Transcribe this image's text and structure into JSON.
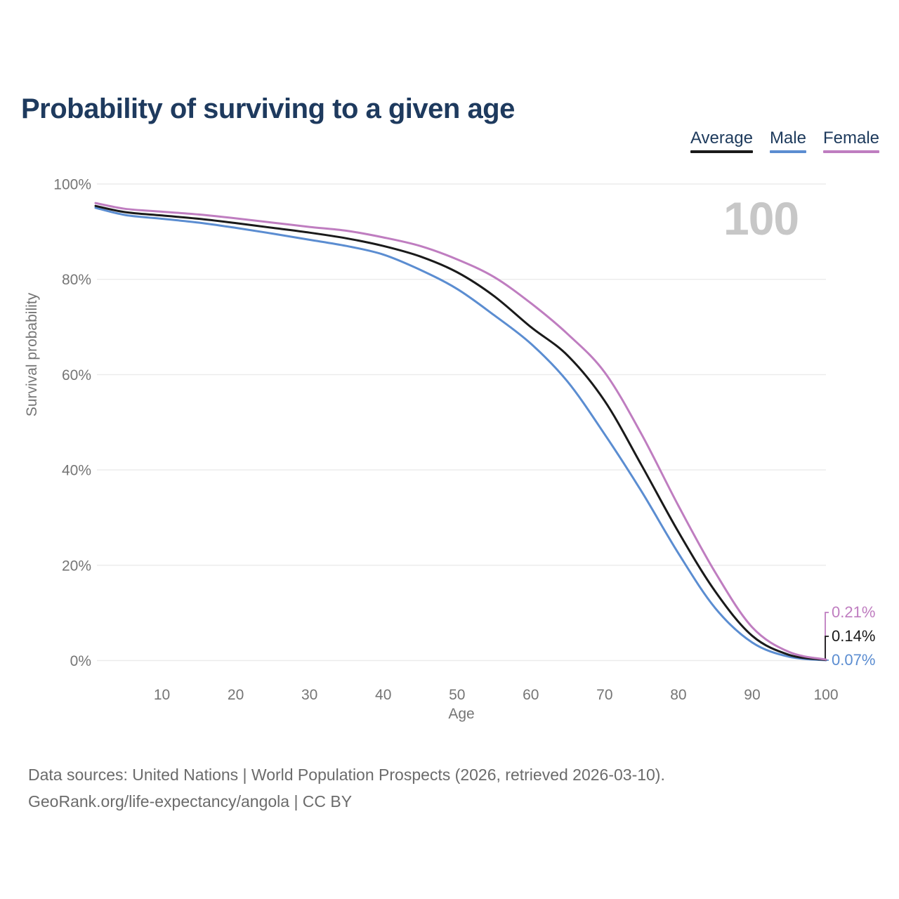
{
  "page": {
    "title": "Probability of surviving to a given age",
    "footer": {
      "line1": "Data sources: United Nations | World Population Prospects (2026, retrieved 2026-03-10).",
      "line2": "GeoRank.org/life-expectancy/angola | CC BY"
    }
  },
  "legend": {
    "items": [
      {
        "label": "Average",
        "color": "#1a1a1a"
      },
      {
        "label": "Male",
        "color": "#5b8dd1"
      },
      {
        "label": "Female",
        "color": "#bf7dc0"
      }
    ]
  },
  "chart_data": {
    "type": "line",
    "title": "Probability of surviving to a given age",
    "xlabel": "Age",
    "ylabel": "Survival probability",
    "xlim": [
      1,
      100
    ],
    "ylim": [
      0,
      100
    ],
    "grid": true,
    "legend_position": "top-right",
    "hover_age_label": "100",
    "x": [
      1,
      5,
      10,
      15,
      20,
      25,
      30,
      35,
      40,
      45,
      50,
      55,
      60,
      65,
      70,
      75,
      80,
      85,
      90,
      95,
      100
    ],
    "series": [
      {
        "name": "Average",
        "color": "#1a1a1a",
        "values": [
          95.4,
          94.1,
          93.4,
          92.7,
          91.8,
          90.8,
          89.8,
          88.6,
          87.0,
          84.8,
          81.5,
          76.5,
          70.0,
          64.0,
          54.5,
          41.0,
          27.0,
          14.5,
          5.2,
          1.2,
          0.14
        ]
      },
      {
        "name": "Male",
        "color": "#5b8dd1",
        "values": [
          95.0,
          93.5,
          92.7,
          91.9,
          90.8,
          89.6,
          88.3,
          87.0,
          85.2,
          82.0,
          78.0,
          72.5,
          66.5,
          58.5,
          47.5,
          35.5,
          22.5,
          11.0,
          3.8,
          0.8,
          0.07
        ]
      },
      {
        "name": "Female",
        "color": "#bf7dc0",
        "values": [
          96.0,
          94.8,
          94.2,
          93.6,
          92.8,
          91.9,
          91.0,
          90.2,
          88.8,
          87.0,
          84.2,
          80.5,
          75.0,
          68.5,
          60.5,
          47.5,
          32.5,
          18.5,
          7.0,
          1.8,
          0.21
        ]
      }
    ],
    "x_ticks": [
      {
        "value": 10,
        "label": "10"
      },
      {
        "value": 20,
        "label": "20"
      },
      {
        "value": 30,
        "label": "30"
      },
      {
        "value": 40,
        "label": "40"
      },
      {
        "value": 50,
        "label": "50"
      },
      {
        "value": 60,
        "label": "60"
      },
      {
        "value": 70,
        "label": "70"
      },
      {
        "value": 80,
        "label": "80"
      },
      {
        "value": 90,
        "label": "90"
      },
      {
        "value": 100,
        "label": "100"
      }
    ],
    "y_ticks": [
      {
        "value": 0,
        "label": "0%"
      },
      {
        "value": 20,
        "label": "20%"
      },
      {
        "value": 40,
        "label": "40%"
      },
      {
        "value": 60,
        "label": "60%"
      },
      {
        "value": 80,
        "label": "80%"
      },
      {
        "value": 100,
        "label": "100%"
      }
    ],
    "end_labels": [
      {
        "series": "Female",
        "label": "0.21%",
        "color": "#bf7dc0"
      },
      {
        "series": "Average",
        "label": "0.14%",
        "color": "#1a1a1a"
      },
      {
        "series": "Male",
        "label": "0.07%",
        "color": "#5b8dd1"
      }
    ]
  }
}
